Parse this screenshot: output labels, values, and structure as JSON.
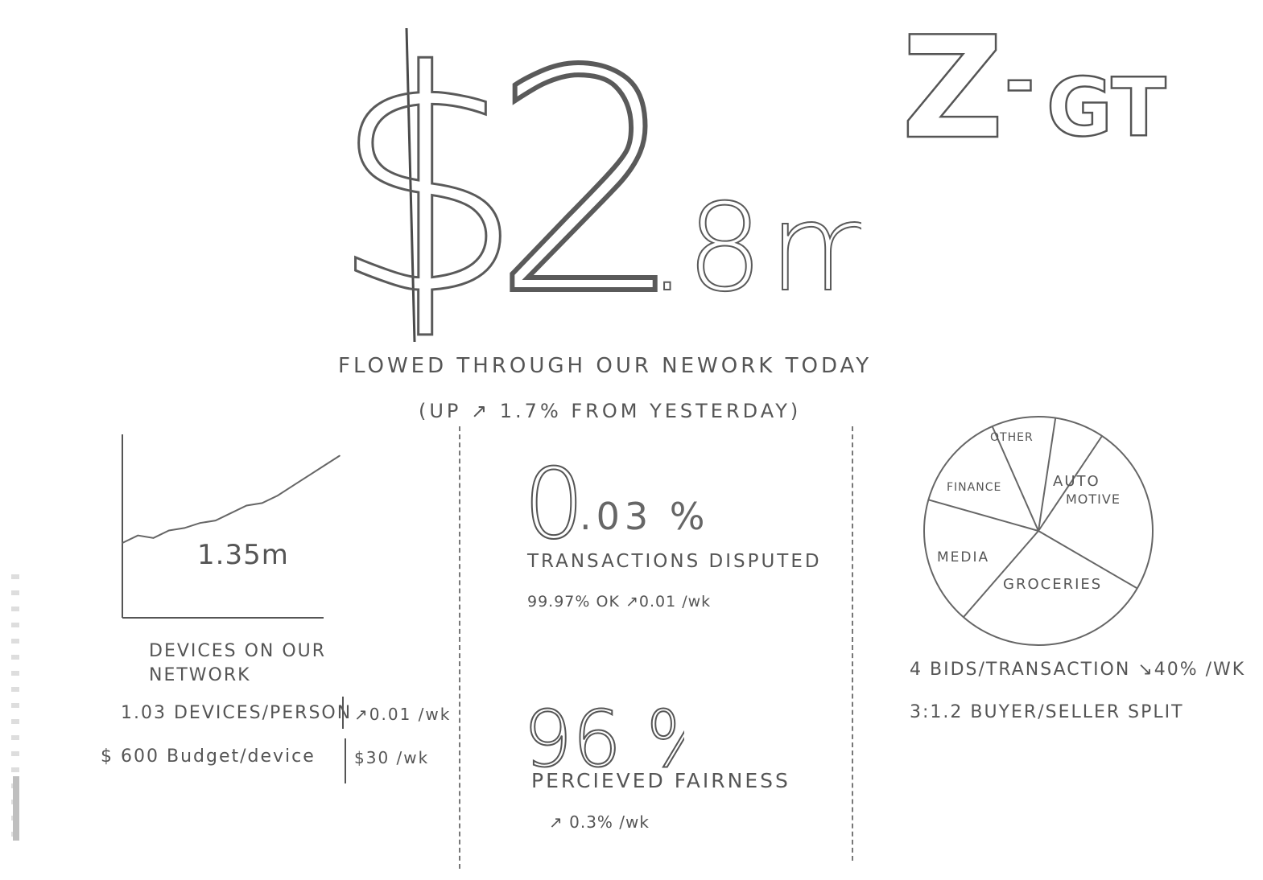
{
  "hero": {
    "dollar": "$",
    "integer": "2",
    "decimal": ".8",
    "unit": "m",
    "caption": "FLOWED THROUGH OUR NEWORK TODAY",
    "subcaption": "(UP ↗ 1.7% FROM YESTERDAY)"
  },
  "logo": {
    "letter": "Z",
    "dash": "-",
    "suffix": "GT"
  },
  "devices": {
    "chart_value": "1.35m",
    "label_line1": "DEVICES ON OUR",
    "label_line2": "NETWORK",
    "per_person": "1.03 DEVICES/PERSON",
    "per_person_change": "↗0.01 /wk",
    "budget": "$ 600  Budget/device",
    "budget_change": "$30 /wk"
  },
  "disputes": {
    "value_big": "0",
    "value_rest": ".03 %",
    "label": "TRANSACTIONS DISPUTED",
    "sub": "99.97% OK ↗0.01 /wk"
  },
  "fairness": {
    "value": "96 %",
    "label": "PERCIEVED FAIRNESS",
    "sub": "↗ 0.3% /wk"
  },
  "categories": {
    "other": "OTHER",
    "finance": "FINANCE",
    "auto_1": "AUTO",
    "auto_2": "MOTIVE",
    "media": "MEDIA",
    "groceries": "GROCERIES"
  },
  "bids_stat": "4 BIDS/TRANSACTION ↘40% /wk",
  "split_stat": "3:1.2  BUYER/SELLER SPLIT",
  "chart_data": {
    "type": "line",
    "x": [
      0,
      1,
      2,
      3,
      4,
      5,
      6,
      7,
      8,
      9,
      10,
      11,
      12,
      13,
      14
    ],
    "values": [
      1.0,
      1.03,
      1.02,
      1.05,
      1.06,
      1.08,
      1.09,
      1.12,
      1.15,
      1.16,
      1.19,
      1.23,
      1.27,
      1.31,
      1.35
    ],
    "ylim": [
      0.7,
      1.5
    ],
    "grid": false,
    "annotation": "1.35m"
  },
  "pie_data": {
    "type": "pie",
    "values": [
      7,
      24,
      28,
      18,
      14,
      9
    ]
  }
}
